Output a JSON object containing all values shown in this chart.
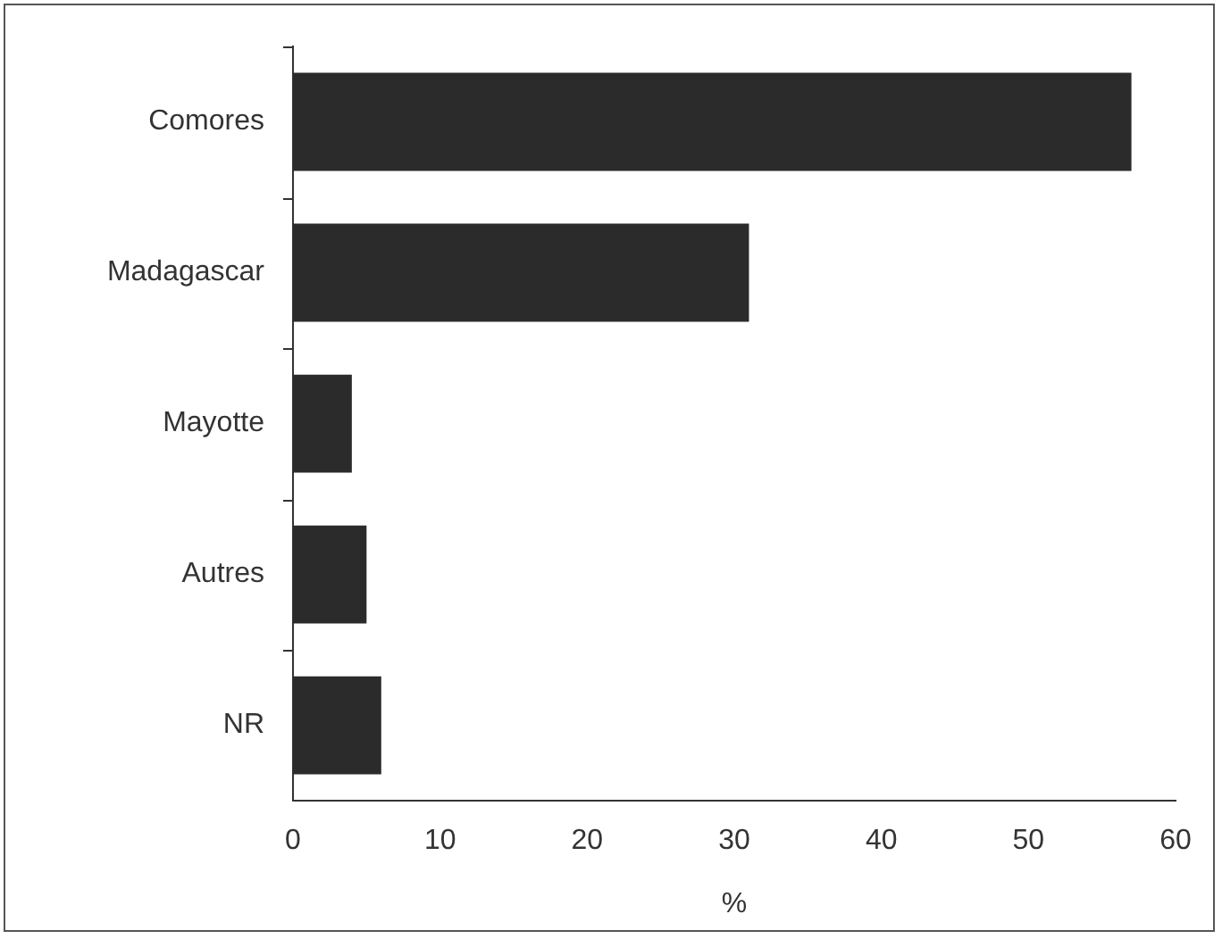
{
  "chart_data": {
    "type": "bar",
    "orientation": "horizontal",
    "xlabel": "%",
    "categories": [
      "Comores",
      "Madagascar",
      "Mayotte",
      "Autres",
      "NR"
    ],
    "values": [
      57,
      31,
      4,
      5,
      6
    ],
    "color": "#2b2b2b",
    "xlim": [
      0,
      60
    ],
    "xticks": [
      0,
      10,
      20,
      30,
      40,
      50,
      60
    ],
    "grid": false,
    "legend": false
  }
}
